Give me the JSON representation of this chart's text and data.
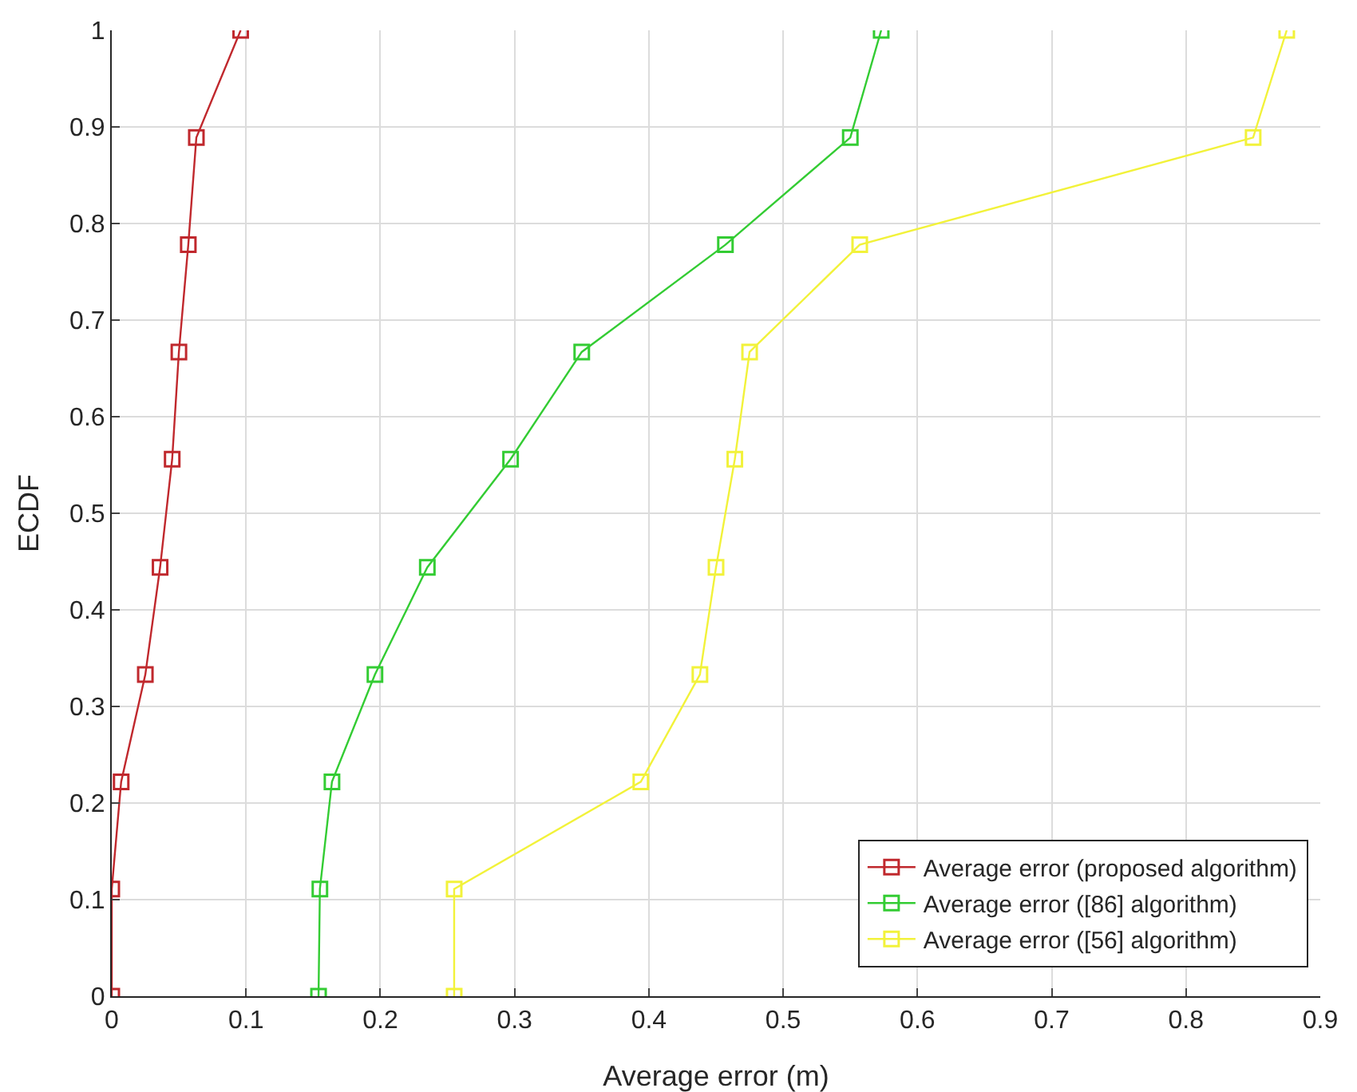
{
  "chart_data": {
    "type": "line",
    "xlabel": "Average error (m)",
    "ylabel": "ECDF",
    "xlim": [
      0,
      0.9
    ],
    "ylim": [
      0,
      1
    ],
    "xticks": [
      0,
      0.1,
      0.2,
      0.3,
      0.4,
      0.5,
      0.6,
      0.7,
      0.8,
      0.9
    ],
    "yticks": [
      0,
      0.1,
      0.2,
      0.3,
      0.4,
      0.5,
      0.6,
      0.7,
      0.8,
      0.9,
      1
    ],
    "grid": true,
    "legend": "bottom right",
    "marker": "square",
    "line_style": "solid",
    "series": [
      {
        "name": "Average error (proposed algorithm)",
        "color": "#c0282d",
        "x": [
          0.0,
          0.0,
          0.007,
          0.025,
          0.036,
          0.045,
          0.05,
          0.057,
          0.063,
          0.096
        ],
        "values": [
          0,
          0.111,
          0.222,
          0.333,
          0.444,
          0.556,
          0.667,
          0.778,
          0.889,
          1
        ]
      },
      {
        "name": "Average error ([86] algorithm)",
        "color": "#33cc33",
        "x": [
          0.154,
          0.155,
          0.164,
          0.196,
          0.235,
          0.297,
          0.35,
          0.457,
          0.55,
          0.573
        ],
        "values": [
          0,
          0.111,
          0.222,
          0.333,
          0.444,
          0.556,
          0.667,
          0.778,
          0.889,
          1
        ]
      },
      {
        "name": "Average error ([56] algorithm)",
        "color": "#f2f23a",
        "x": [
          0.255,
          0.255,
          0.394,
          0.438,
          0.45,
          0.464,
          0.475,
          0.557,
          0.85,
          0.875
        ],
        "values": [
          0,
          0.111,
          0.222,
          0.333,
          0.444,
          0.556,
          0.667,
          0.778,
          0.889,
          1
        ]
      }
    ]
  }
}
